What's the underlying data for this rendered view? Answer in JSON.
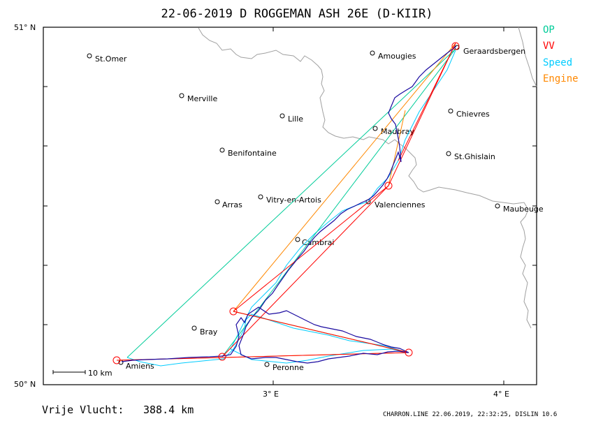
{
  "title": "22-06-2019   D ROGGEMAN   ASH 26E (D-KIIR)",
  "legend": [
    {
      "label": "OP",
      "color": "#00cc99"
    },
    {
      "label": "VV",
      "color": "#ff0000"
    },
    {
      "label": "Speed",
      "color": "#00ccff"
    },
    {
      "label": "Engine",
      "color": "#ff8800"
    }
  ],
  "axes": {
    "lat_top": "51° N",
    "lat_bottom": "50° N",
    "lon_3": "3° E",
    "lon_4": "4° E"
  },
  "scale_bar": "10  km",
  "footer": {
    "distance_label": "Vrije Vlucht:",
    "distance_value": "388.4 km",
    "credit": "CHARRON.LINE 22.06.2019, 22:32:25, DISLIN 10.6"
  },
  "towns": [
    "St.Omer",
    "Amougies",
    "Geraardsbergen",
    "Merville",
    "Lille",
    "Chievres",
    "Maubray",
    "Benifontaine",
    "St.Ghislain",
    "Vitry-en-Artois",
    "Arras",
    "Valenciennes",
    "Maubeuge",
    "Cambrai",
    "Bray",
    "Amiens",
    "Peronne"
  ],
  "turnpoints": [
    "Geraardsbergen",
    "Amiens",
    "Peronne",
    "Valenciennes"
  ],
  "colors": {
    "track": "#1a0aa0",
    "border": "#a0a0a0",
    "opt_line": "#00cc99",
    "vv_line": "#ff0000",
    "speed_line": "#00ccff",
    "engine_line": "#ff8800",
    "marker": "#ff0000"
  }
}
